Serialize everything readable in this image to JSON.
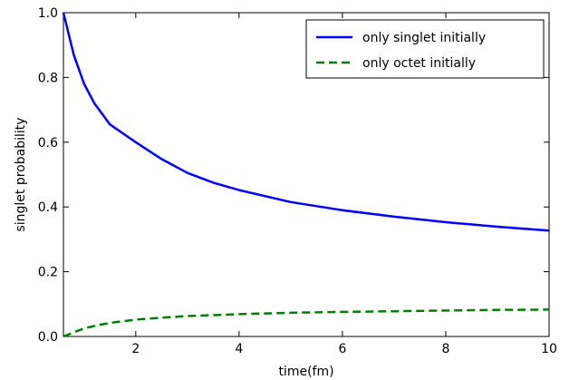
{
  "chart_data": {
    "type": "line",
    "xlabel": "time(fm)",
    "ylabel": "singlet probability",
    "xlim": [
      0.6,
      10
    ],
    "ylim": [
      0.0,
      1.0
    ],
    "x_ticks": [
      2,
      4,
      6,
      8,
      10
    ],
    "x_tick_labels": [
      "2",
      "4",
      "6",
      "8",
      "10"
    ],
    "y_ticks": [
      0.0,
      0.2,
      0.4,
      0.6,
      0.8,
      1.0
    ],
    "y_tick_labels": [
      "0.0",
      "0.2",
      "0.4",
      "0.6",
      "0.8",
      "1.0"
    ],
    "grid": false,
    "legend_position": "top-right",
    "series": [
      {
        "name": "only singlet initially",
        "color": "#0000ff",
        "line_style": "solid",
        "x": [
          0.6,
          0.8,
          1.0,
          1.2,
          1.5,
          2.0,
          2.5,
          3.0,
          3.5,
          4.0,
          5.0,
          6.0,
          7.0,
          8.0,
          9.0,
          10.0
        ],
        "y": [
          1.0,
          0.87,
          0.78,
          0.72,
          0.655,
          0.6,
          0.548,
          0.505,
          0.475,
          0.452,
          0.415,
          0.39,
          0.37,
          0.353,
          0.339,
          0.327
        ]
      },
      {
        "name": "only octet initially",
        "color": "#008000",
        "line_style": "dashed",
        "x": [
          0.6,
          0.8,
          1.0,
          1.3,
          1.6,
          2.0,
          2.5,
          3.0,
          4.0,
          5.0,
          6.0,
          7.0,
          8.0,
          9.0,
          10.0
        ],
        "y": [
          0.0,
          0.013,
          0.025,
          0.036,
          0.044,
          0.052,
          0.058,
          0.063,
          0.069,
          0.073,
          0.076,
          0.078,
          0.08,
          0.082,
          0.083
        ]
      }
    ]
  }
}
